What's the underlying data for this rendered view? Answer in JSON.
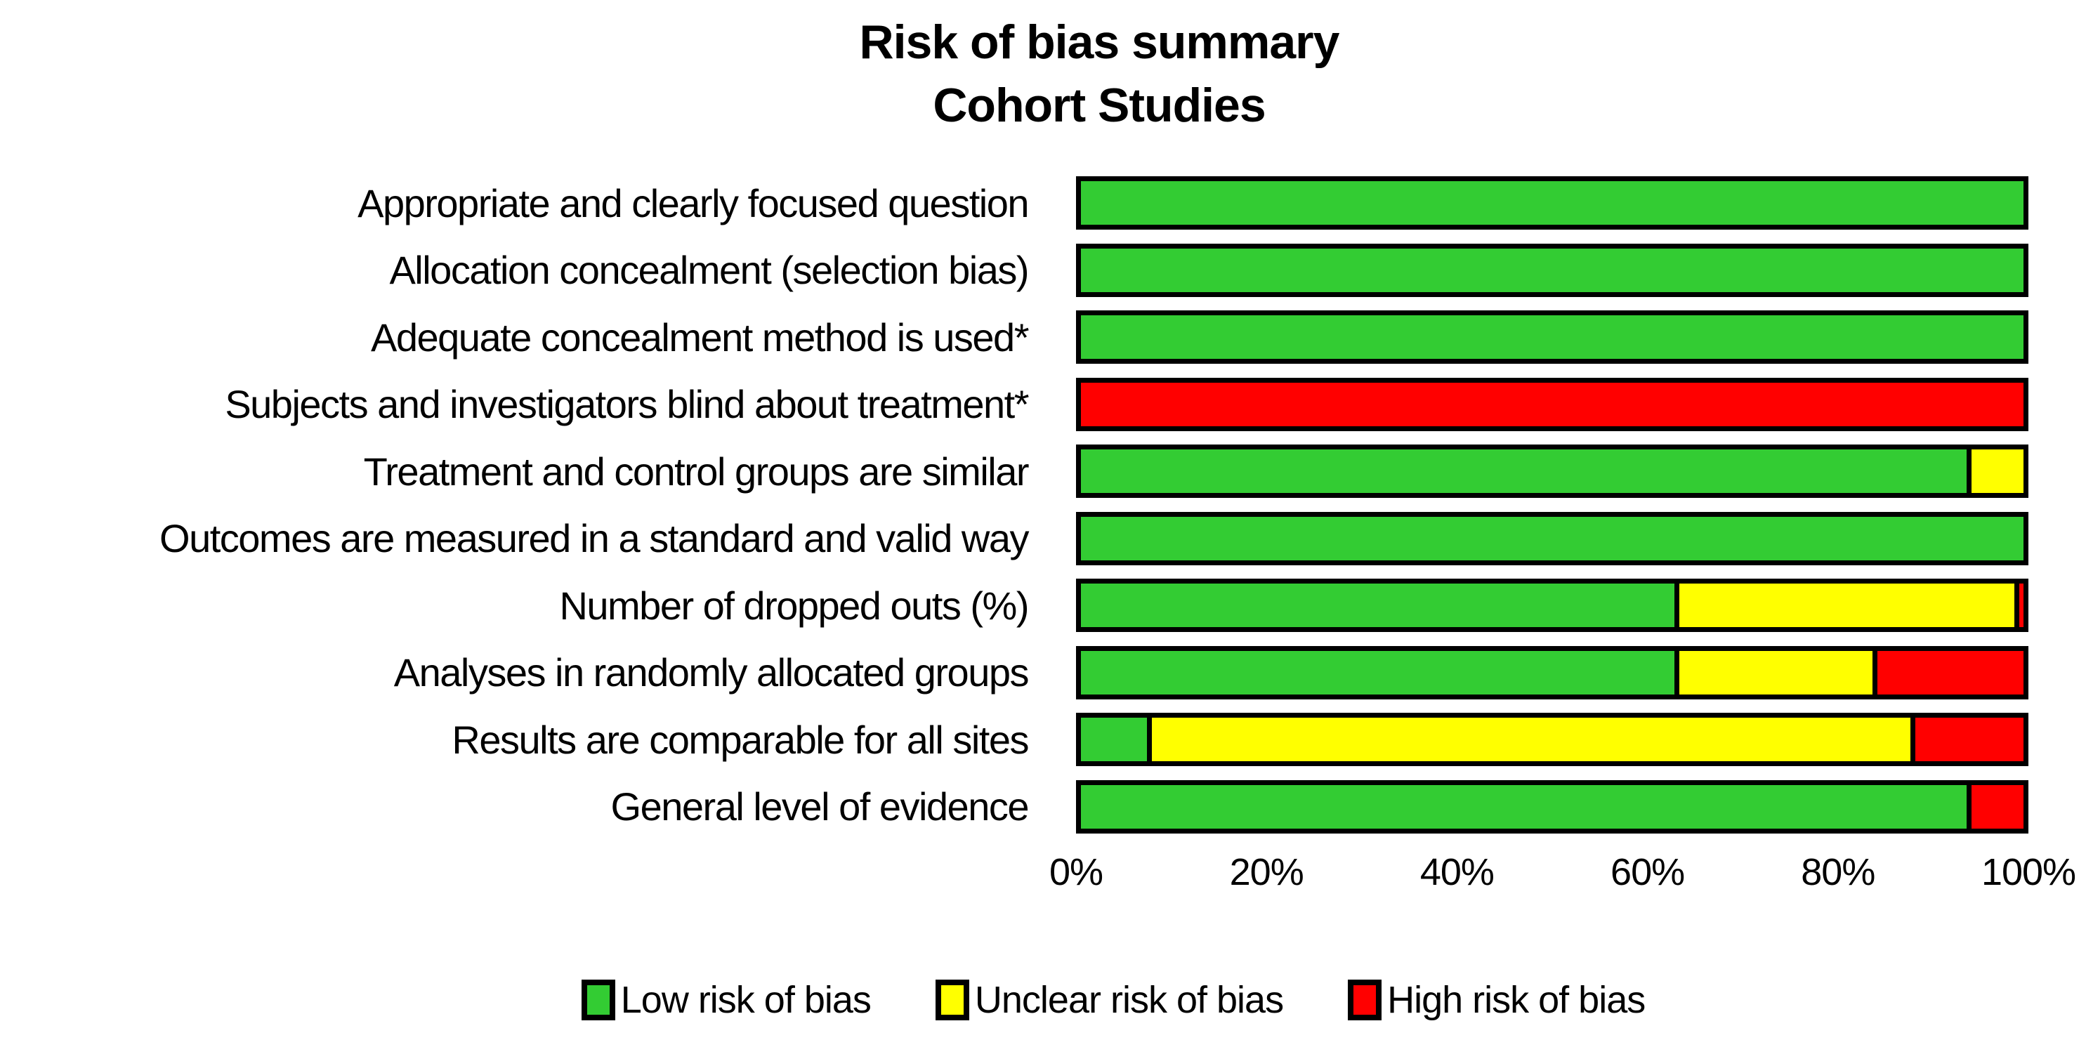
{
  "title": {
    "line1": "Risk of bias summary",
    "line2": "Cohort Studies"
  },
  "colors": {
    "low": "#33CC33",
    "unclear": "#FFFF00",
    "high": "#FF0000",
    "border": "#000000"
  },
  "chart_data": {
    "type": "bar",
    "stacked": true,
    "orientation": "horizontal",
    "title": "Risk of bias summary Cohort Studies",
    "categories": [
      "Appropriate and clearly focused question",
      "Allocation concealment (selection bias)",
      "Adequate concealment method is used*",
      "Subjects and investigators blind about treatment*",
      "Treatment and control groups are similar",
      "Outcomes are measured in a standard and valid way",
      "Number of dropped outs (%)",
      "Analyses in randomly allocated groups",
      "Results are comparable for all sites",
      "General level of evidence"
    ],
    "series": [
      {
        "name": "Low risk of bias",
        "key": "low",
        "color": "#33CC33",
        "values": [
          100,
          100,
          100,
          0,
          94,
          100,
          63,
          63,
          7,
          94
        ]
      },
      {
        "name": "Unclear risk of bias",
        "key": "unclear",
        "color": "#FFFF00",
        "values": [
          0,
          0,
          0,
          0,
          6,
          0,
          36,
          21,
          81,
          0
        ]
      },
      {
        "name": "High risk of bias",
        "key": "high",
        "color": "#FF0000",
        "values": [
          0,
          0,
          0,
          100,
          0,
          0,
          1,
          16,
          12,
          6
        ]
      }
    ],
    "x_ticks": [
      "0%",
      "20%",
      "40%",
      "60%",
      "80%",
      "100%"
    ],
    "xlim": [
      0,
      100
    ],
    "grid": false,
    "legend_position": "bottom"
  }
}
